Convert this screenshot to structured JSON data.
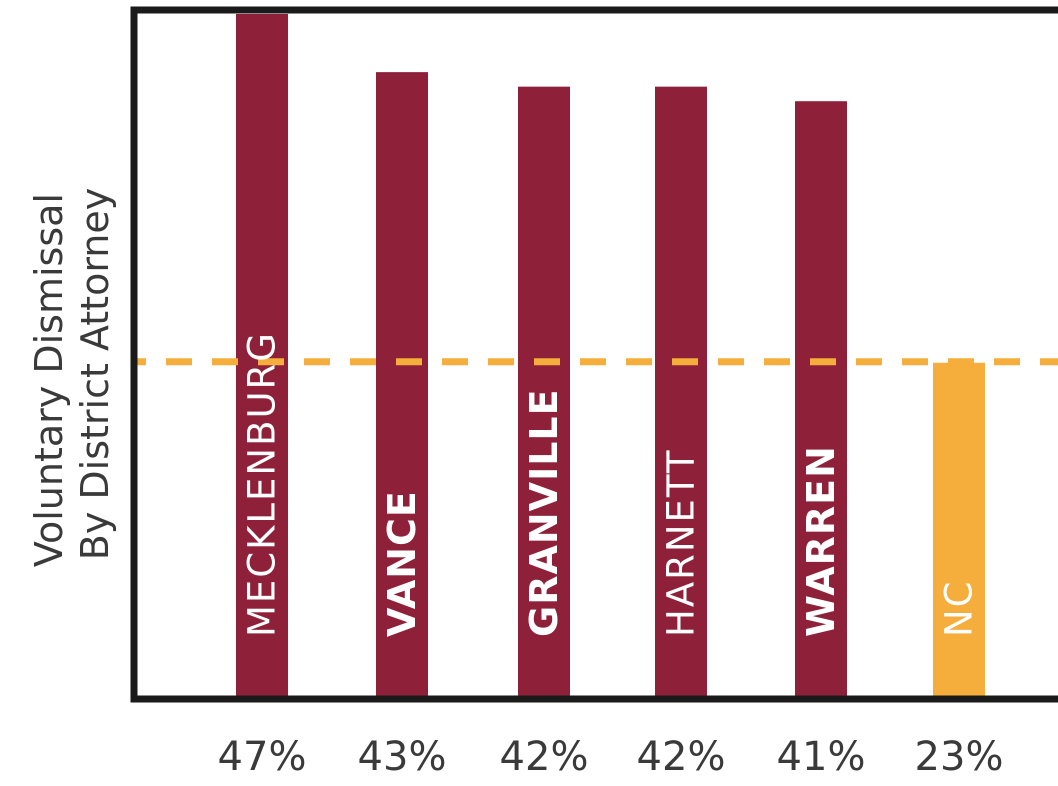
{
  "chart_data": {
    "type": "bar",
    "title": "",
    "xlabel": "",
    "ylabel": [
      "Voluntary Dismissal",
      "By District Attorney"
    ],
    "categories": [
      "MECKLENBURG",
      "VANCE",
      "GRANVILLE",
      "HARNETT",
      "WARREN",
      "NC"
    ],
    "values": [
      47,
      43,
      42,
      42,
      41,
      23
    ],
    "value_labels": [
      "47%",
      "43%",
      "42%",
      "42%",
      "41%",
      "23%"
    ],
    "bold_labels": [
      false,
      true,
      true,
      false,
      true,
      false
    ],
    "reference_line": {
      "value": 23,
      "style": "dashed"
    },
    "ylim": [
      0,
      47
    ],
    "grid": false,
    "legend": "none",
    "colors": {
      "county": "#8e2139",
      "state": "#f5ad3b",
      "reference_line": "#f5ad3b",
      "frame": "#1a1a1a",
      "label_text": "#ffffff",
      "axis_text": "#3a3a3a"
    }
  }
}
